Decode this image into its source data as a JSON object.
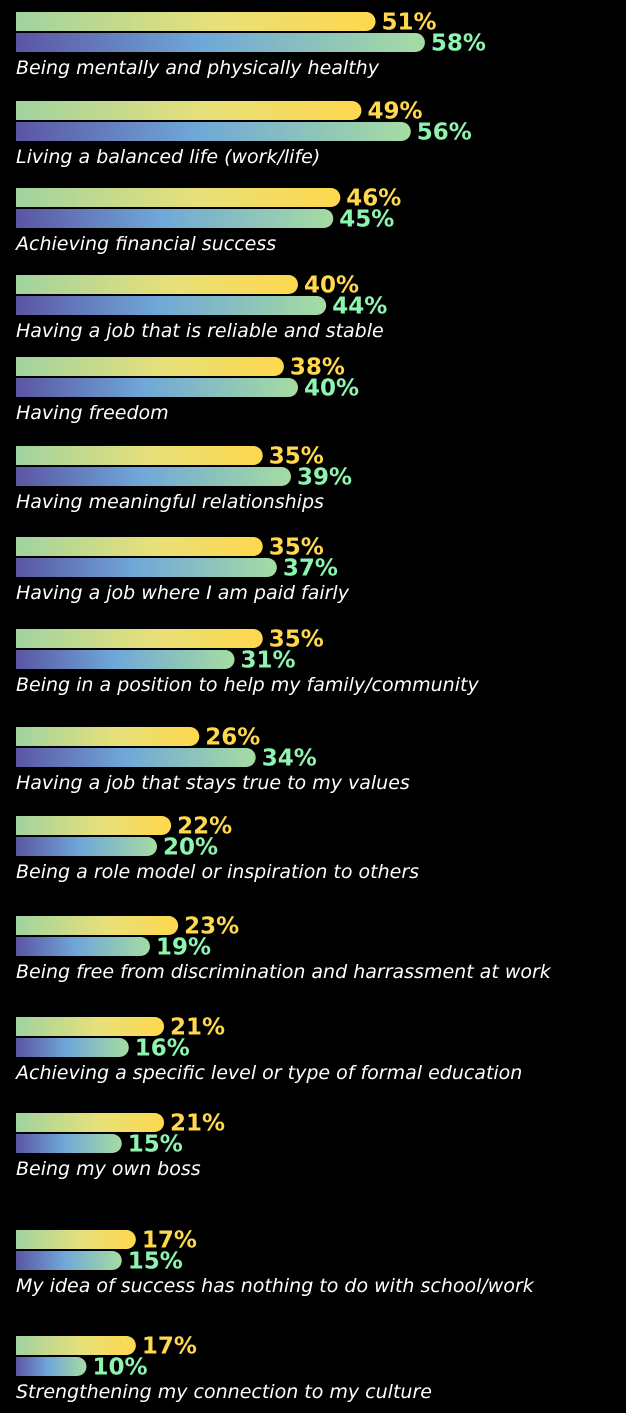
{
  "chart_data": {
    "type": "bar",
    "orientation": "horizontal",
    "value_unit": "%",
    "series": [
      {
        "color": "#ffd84d",
        "values": [
          51,
          49,
          46,
          40,
          38,
          35,
          35,
          35,
          26,
          22,
          23,
          21,
          21,
          17,
          17
        ]
      },
      {
        "color": "#8df5b0",
        "values": [
          58,
          56,
          45,
          44,
          40,
          39,
          37,
          31,
          34,
          20,
          19,
          16,
          15,
          15,
          10
        ]
      }
    ],
    "categories": [
      "Being mentally and physically healthy",
      "Living a balanced life (work/life)",
      "Achieving financial success",
      "Having a job that is reliable and stable",
      "Having freedom",
      "Having meaningful relationships",
      "Having a job where I am paid fairly",
      "Being in a position to help my family/community",
      "Having a job that stays true to my values",
      "Being a role model or inspiration to others",
      "Being free from discrimination and harrassment at work",
      "Achieving a specific level or type of formal education",
      "Being my own boss",
      "My idea of success has nothing to do with school/work",
      "Strengthening my connection to my culture"
    ],
    "labels": [
      [
        "51%",
        "58%"
      ],
      [
        "49%",
        "56%"
      ],
      [
        "46%",
        "45%"
      ],
      [
        "40%",
        "44%"
      ],
      [
        "38%",
        "40%"
      ],
      [
        "35%",
        "39%"
      ],
      [
        "35%",
        "37%"
      ],
      [
        "35%",
        "31%"
      ],
      [
        "26%",
        "34%"
      ],
      [
        "22%",
        "20%"
      ],
      [
        "23%",
        "19%"
      ],
      [
        "21%",
        "16%"
      ],
      [
        "21%",
        "15%"
      ],
      [
        "17%",
        "15%"
      ],
      [
        "17%",
        "10%"
      ]
    ],
    "xlim": [
      0,
      58
    ],
    "grid": false,
    "legend": "none"
  }
}
